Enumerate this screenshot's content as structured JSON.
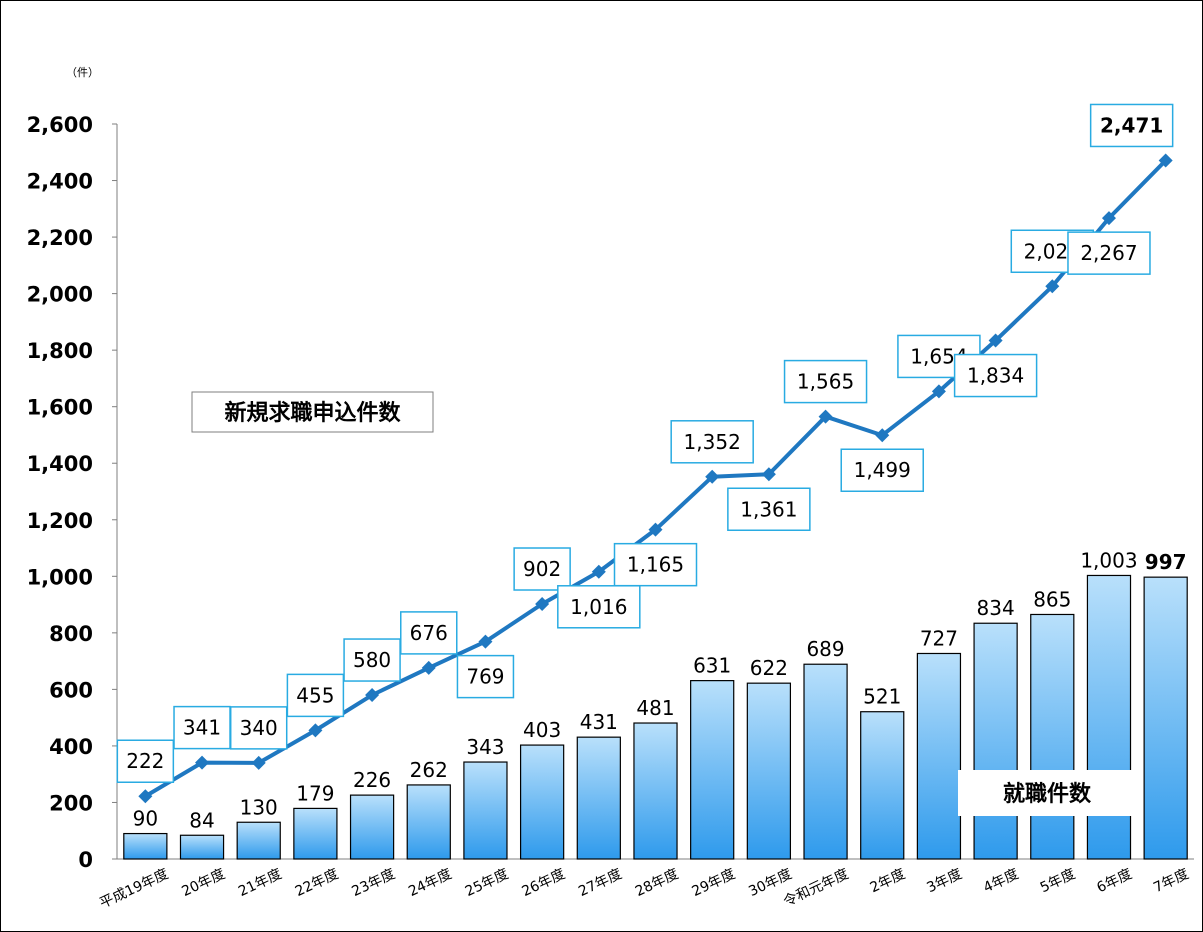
{
  "chart_data": {
    "type": "bar",
    "unit_label": "（件）",
    "ylim": [
      0,
      2600
    ],
    "yticks": [
      0,
      200,
      400,
      600,
      800,
      1000,
      1200,
      1400,
      1600,
      1800,
      2000,
      2200,
      2400,
      2600
    ],
    "ytick_labels": [
      "0",
      "200",
      "400",
      "600",
      "800",
      "1,000",
      "1,200",
      "1,400",
      "1,600",
      "1,800",
      "2,000",
      "2,200",
      "2,400",
      "2,600"
    ],
    "categories": [
      "平成19年度",
      "20年度",
      "21年度",
      "22年度",
      "23年度",
      "24年度",
      "25年度",
      "26年度",
      "27年度",
      "28年度",
      "29年度",
      "30年度",
      "令和元年度",
      "2年度",
      "3年度",
      "4年度",
      "5年度",
      "6年度",
      "7年度"
    ],
    "series": [
      {
        "name": "新規求職申込件数",
        "type": "line",
        "color": "#1F78C1",
        "values": [
          222,
          341,
          340,
          455,
          580,
          676,
          769,
          902,
          1016,
          1165,
          1352,
          1361,
          1565,
          1499,
          1654,
          1834,
          2026,
          2267,
          2471
        ],
        "labels": [
          "222",
          "341",
          "340",
          "455",
          "580",
          "676",
          "769",
          "902",
          "1,016",
          "1,165",
          "1,352",
          "1,361",
          "1,565",
          "1,499",
          "1,654",
          "1,834",
          "2,026",
          "2,267",
          "2,471"
        ]
      },
      {
        "name": "就職件数",
        "type": "bar",
        "color": "#5BB4F0",
        "values": [
          90,
          84,
          130,
          179,
          226,
          262,
          343,
          403,
          431,
          481,
          631,
          622,
          689,
          521,
          727,
          834,
          865,
          1003,
          997
        ],
        "labels": [
          "90",
          "84",
          "130",
          "179",
          "226",
          "262",
          "343",
          "403",
          "431",
          "481",
          "631",
          "622",
          "689",
          "521",
          "727",
          "834",
          "865",
          "1,003",
          "997"
        ]
      }
    ],
    "grid": false,
    "legend": "inline-labels"
  }
}
